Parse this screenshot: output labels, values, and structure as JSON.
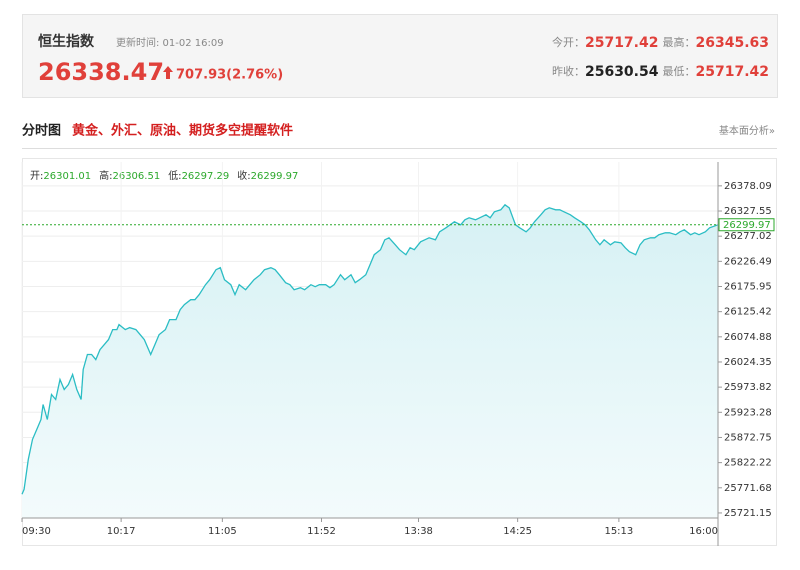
{
  "header": {
    "title": "恒生指数",
    "update": "更新时间: 01-02 16:09",
    "price": "26338.47",
    "change": "707.93(2.76%)",
    "stats": [
      {
        "label": "今开：",
        "value": "25717.42"
      },
      {
        "label": "最高：",
        "value": "26345.63"
      },
      {
        "label": "昨收：",
        "value": "25630.54"
      },
      {
        "label": "最低：",
        "value": "25717.42"
      }
    ]
  },
  "section": {
    "title": "分时图",
    "promo": "黄金、外汇、原油、期货多空提醒软件",
    "link": "基本面分析»"
  },
  "chart_data": {
    "type": "line",
    "info": [
      {
        "label": "开:",
        "value": "26301.01"
      },
      {
        "label": "高:",
        "value": "26306.51"
      },
      {
        "label": "低:",
        "value": "26297.29"
      },
      {
        "label": "收:",
        "value": "26299.97"
      }
    ],
    "x": [
      0,
      1,
      3,
      5,
      7,
      9,
      10,
      12,
      14,
      16,
      18,
      20,
      22,
      24,
      26,
      28,
      29,
      31,
      33,
      35,
      37,
      39,
      41,
      43,
      45,
      46,
      49,
      51,
      54,
      56,
      58,
      61,
      63,
      65,
      68,
      70,
      73,
      75,
      77,
      80,
      82,
      84,
      87,
      89,
      92,
      94,
      96,
      99,
      101,
      103,
      106,
      108,
      110,
      113,
      115,
      118,
      120,
      122,
      125,
      127,
      129,
      132,
      134,
      137,
      139,
      141,
      144,
      146,
      148,
      151,
      153,
      156,
      158,
      160,
      163,
      165,
      167,
      170,
      172,
      174,
      177,
      179,
      182,
      184,
      186,
      189,
      191,
      193,
      196,
      198,
      201,
      203,
      205,
      208,
      210,
      212,
      215,
      217,
      220,
      222,
      224,
      227,
      229,
      231,
      234,
      236,
      239,
      241,
      243,
      246,
      248,
      250,
      253,
      255,
      257,
      260,
      262,
      265,
      267,
      269,
      272,
      274,
      276,
      279,
      281,
      284,
      286,
      288,
      291,
      293,
      295,
      298,
      300,
      302,
      305,
      307,
      310,
      312,
      314,
      317,
      319,
      321,
      324,
      326,
      330
    ],
    "series": [
      {
        "color": "#2bbdc4",
        "values": [
          25758.6,
          25768.6,
          25828.7,
          25868.8,
          25888.9,
          25908.9,
          25939.0,
          25908.9,
          25959.1,
          25949.0,
          25989.1,
          25969.1,
          25979.1,
          25999.2,
          25969.1,
          25949.0,
          26009.2,
          26039.3,
          26039.3,
          26029.2,
          26049.3,
          26059.3,
          26069.3,
          26089.4,
          26089.4,
          26099.4,
          26089.4,
          26093.4,
          26089.4,
          26079.4,
          26069.3,
          26039.3,
          26059.3,
          26079.4,
          26089.4,
          26109.4,
          26109.4,
          26129.5,
          26139.5,
          26149.5,
          26149.5,
          26159.6,
          26179.6,
          26189.6,
          26209.7,
          26213.7,
          26189.6,
          26179.6,
          26159.6,
          26179.6,
          26169.6,
          26179.6,
          26189.6,
          26199.7,
          26209.7,
          26213.7,
          26209.7,
          26199.7,
          26183.6,
          26179.6,
          26169.6,
          26173.6,
          26169.6,
          26179.6,
          26175.6,
          26179.6,
          26179.6,
          26173.6,
          26179.6,
          26199.7,
          26189.6,
          26199.7,
          26183.6,
          26189.6,
          26199.7,
          26219.7,
          26239.8,
          26249.8,
          26269.8,
          26273.8,
          26259.8,
          26249.8,
          26239.8,
          26253.8,
          26249.8,
          26265.8,
          26269.8,
          26273.8,
          26269.8,
          26285.9,
          26293.9,
          26299.9,
          26305.9,
          26299.9,
          26309.9,
          26313.9,
          26309.9,
          26313.9,
          26320.0,
          26313.9,
          26326.0,
          26330.0,
          26340.0,
          26334.0,
          26299.9,
          26293.9,
          26285.9,
          26293.9,
          26305.9,
          26320.0,
          26330.0,
          26334.0,
          26330.0,
          26330.0,
          26326.0,
          26320.0,
          26313.9,
          26305.9,
          26299.9,
          26289.9,
          26269.8,
          26259.8,
          26269.8,
          26259.8,
          26265.8,
          26263.8,
          26253.8,
          26245.8,
          26239.8,
          26259.8,
          26269.8,
          26273.8,
          26273.8,
          26279.9,
          26283.9,
          26283.9,
          26279.9,
          26285.9,
          26289.9,
          26279.9,
          26283.9,
          26279.9,
          26285.9,
          26293.9,
          26299.97
        ]
      }
    ],
    "current": 26299.97,
    "current_color": "#2ca82c",
    "xlim": [
      0,
      330
    ],
    "xticks": [
      {
        "value": 0,
        "label": "09:30"
      },
      {
        "value": 47,
        "label": "10:17"
      },
      {
        "value": 95,
        "label": "11:05"
      },
      {
        "value": 142,
        "label": "11:52"
      },
      {
        "value": 188,
        "label": "13:38"
      },
      {
        "value": 235,
        "label": "14:25"
      },
      {
        "value": 283,
        "label": "15:13"
      },
      {
        "value": 330,
        "label": "16:00"
      }
    ],
    "ylim": [
      25711,
      26426
    ],
    "yticks": [
      25721.15,
      25771.68,
      25822.22,
      25872.75,
      25923.28,
      25973.82,
      26024.35,
      26074.88,
      26125.42,
      26175.95,
      26226.49,
      26277.02,
      26327.55,
      26378.09
    ],
    "grid": true
  }
}
